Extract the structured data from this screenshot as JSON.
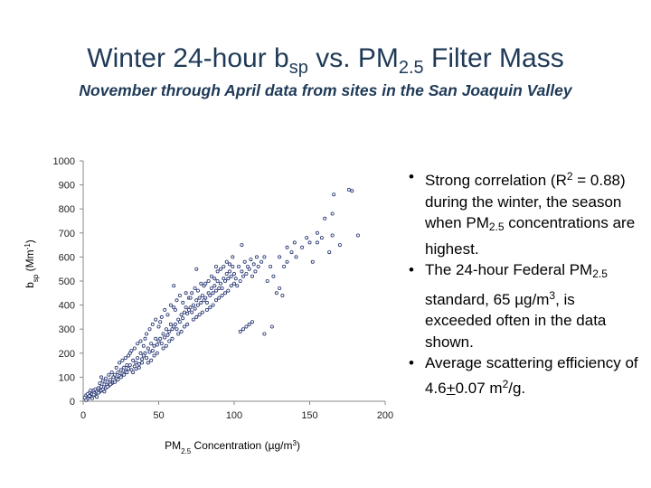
{
  "title": {
    "main": "Winter 24-hour b",
    "main_sub": "sp",
    "main_mid": " vs. PM",
    "main_sub2": "2.5",
    "main_end": " Filter Mass"
  },
  "subtitle": "November through April data from sites in the San Joaquin Valley",
  "bullets": [
    {
      "parts": [
        "Strong correlation (R",
        "2",
        " = 0.88) during the winter, the season when PM",
        "2.5",
        " concentrations are highest."
      ]
    },
    {
      "parts": [
        "The 24-hour Federal PM",
        "2.5",
        " standard, 65 µg/m",
        "3",
        ", is exceeded often in the data shown."
      ]
    },
    {
      "parts": [
        "Average scattering efficiency of 4.6",
        "+",
        "0.07 m",
        "2",
        "/g."
      ]
    }
  ],
  "chart_data": {
    "type": "scatter",
    "xlabel_parts": [
      "PM",
      "2.5",
      " Concentration (µg/m",
      "3",
      ")"
    ],
    "ylabel_parts": [
      "b",
      "sp",
      " (Mm",
      "-1",
      ")"
    ],
    "xlim": [
      0,
      200
    ],
    "ylim": [
      0,
      1000
    ],
    "xticks": [
      0,
      50,
      100,
      150,
      200
    ],
    "yticks": [
      0,
      100,
      200,
      300,
      400,
      500,
      600,
      700,
      800,
      900,
      1000
    ],
    "grid": false,
    "marker_color": "#1f2f6e",
    "series": [
      {
        "points": [
          [
            1,
            15
          ],
          [
            2,
            25
          ],
          [
            3,
            10
          ],
          [
            4,
            35
          ],
          [
            5,
            20
          ],
          [
            6,
            30
          ],
          [
            7,
            45
          ],
          [
            8,
            25
          ],
          [
            9,
            40
          ],
          [
            10,
            55
          ],
          [
            3,
            30
          ],
          [
            5,
            45
          ],
          [
            7,
            28
          ],
          [
            8,
            50
          ],
          [
            6,
            12
          ],
          [
            4,
            22
          ],
          [
            9,
            18
          ],
          [
            11,
            40
          ],
          [
            2,
            5
          ],
          [
            12,
            45
          ],
          [
            10,
            35
          ],
          [
            12,
            60
          ],
          [
            13,
            50
          ],
          [
            14,
            70
          ],
          [
            15,
            55
          ],
          [
            16,
            80
          ],
          [
            17,
            65
          ],
          [
            18,
            90
          ],
          [
            19,
            75
          ],
          [
            20,
            100
          ],
          [
            11,
            75
          ],
          [
            13,
            85
          ],
          [
            15,
            95
          ],
          [
            17,
            110
          ],
          [
            19,
            120
          ],
          [
            14,
            40
          ],
          [
            16,
            60
          ],
          [
            18,
            70
          ],
          [
            20,
            80
          ],
          [
            12,
            100
          ],
          [
            21,
            110
          ],
          [
            22,
            95
          ],
          [
            23,
            120
          ],
          [
            24,
            105
          ],
          [
            25,
            130
          ],
          [
            26,
            115
          ],
          [
            27,
            140
          ],
          [
            28,
            125
          ],
          [
            29,
            150
          ],
          [
            30,
            135
          ],
          [
            21,
            80
          ],
          [
            23,
            90
          ],
          [
            25,
            100
          ],
          [
            27,
            110
          ],
          [
            29,
            120
          ],
          [
            22,
            140
          ],
          [
            24,
            160
          ],
          [
            26,
            170
          ],
          [
            28,
            180
          ],
          [
            30,
            190
          ],
          [
            31,
            150
          ],
          [
            32,
            130
          ],
          [
            33,
            170
          ],
          [
            34,
            145
          ],
          [
            35,
            160
          ],
          [
            36,
            180
          ],
          [
            37,
            155
          ],
          [
            38,
            200
          ],
          [
            39,
            175
          ],
          [
            40,
            190
          ],
          [
            32,
            210
          ],
          [
            34,
            220
          ],
          [
            36,
            240
          ],
          [
            38,
            250
          ],
          [
            40,
            230
          ],
          [
            33,
            120
          ],
          [
            35,
            135
          ],
          [
            37,
            140
          ],
          [
            39,
            160
          ],
          [
            31,
            200
          ],
          [
            41,
            200
          ],
          [
            42,
            180
          ],
          [
            43,
            220
          ],
          [
            44,
            205
          ],
          [
            45,
            240
          ],
          [
            46,
            210
          ],
          [
            47,
            230
          ],
          [
            48,
            260
          ],
          [
            49,
            235
          ],
          [
            50,
            250
          ],
          [
            42,
            280
          ],
          [
            44,
            300
          ],
          [
            46,
            320
          ],
          [
            48,
            340
          ],
          [
            50,
            310
          ],
          [
            43,
            160
          ],
          [
            45,
            170
          ],
          [
            47,
            190
          ],
          [
            49,
            200
          ],
          [
            41,
            260
          ],
          [
            51,
            260
          ],
          [
            52,
            240
          ],
          [
            53,
            280
          ],
          [
            54,
            265
          ],
          [
            55,
            300
          ],
          [
            56,
            275
          ],
          [
            57,
            290
          ],
          [
            58,
            320
          ],
          [
            59,
            300
          ],
          [
            60,
            310
          ],
          [
            52,
            350
          ],
          [
            54,
            380
          ],
          [
            56,
            360
          ],
          [
            58,
            400
          ],
          [
            60,
            390
          ],
          [
            53,
            220
          ],
          [
            55,
            230
          ],
          [
            57,
            250
          ],
          [
            59,
            260
          ],
          [
            51,
            330
          ],
          [
            61,
            320
          ],
          [
            62,
            300
          ],
          [
            63,
            340
          ],
          [
            64,
            330
          ],
          [
            65,
            360
          ],
          [
            66,
            345
          ],
          [
            67,
            370
          ],
          [
            68,
            390
          ],
          [
            69,
            365
          ],
          [
            70,
            380
          ],
          [
            62,
            420
          ],
          [
            64,
            440
          ],
          [
            66,
            410
          ],
          [
            68,
            450
          ],
          [
            70,
            430
          ],
          [
            63,
            280
          ],
          [
            65,
            290
          ],
          [
            67,
            310
          ],
          [
            69,
            320
          ],
          [
            61,
            380
          ],
          [
            71,
            390
          ],
          [
            72,
            370
          ],
          [
            73,
            400
          ],
          [
            74,
            385
          ],
          [
            75,
            420
          ],
          [
            76,
            400
          ],
          [
            77,
            430
          ],
          [
            78,
            410
          ],
          [
            79,
            440
          ],
          [
            80,
            420
          ],
          [
            72,
            450
          ],
          [
            74,
            470
          ],
          [
            76,
            460
          ],
          [
            78,
            490
          ],
          [
            80,
            480
          ],
          [
            73,
            340
          ],
          [
            75,
            350
          ],
          [
            77,
            360
          ],
          [
            79,
            370
          ],
          [
            71,
            430
          ],
          [
            81,
            430
          ],
          [
            82,
            410
          ],
          [
            83,
            450
          ],
          [
            84,
            440
          ],
          [
            85,
            470
          ],
          [
            86,
            450
          ],
          [
            87,
            480
          ],
          [
            88,
            460
          ],
          [
            89,
            500
          ],
          [
            90,
            470
          ],
          [
            82,
            380
          ],
          [
            84,
            390
          ],
          [
            86,
            400
          ],
          [
            88,
            420
          ],
          [
            90,
            430
          ],
          [
            83,
            500
          ],
          [
            85,
            520
          ],
          [
            87,
            510
          ],
          [
            89,
            540
          ],
          [
            81,
            490
          ],
          [
            91,
            490
          ],
          [
            92,
            470
          ],
          [
            93,
            510
          ],
          [
            94,
            500
          ],
          [
            95,
            530
          ],
          [
            96,
            510
          ],
          [
            97,
            540
          ],
          [
            98,
            520
          ],
          [
            99,
            560
          ],
          [
            100,
            530
          ],
          [
            92,
            440
          ],
          [
            94,
            450
          ],
          [
            96,
            460
          ],
          [
            98,
            480
          ],
          [
            100,
            490
          ],
          [
            93,
            560
          ],
          [
            95,
            580
          ],
          [
            97,
            570
          ],
          [
            99,
            600
          ],
          [
            91,
            550
          ],
          [
            101,
            510
          ],
          [
            103,
            560
          ],
          [
            105,
            540
          ],
          [
            107,
            580
          ],
          [
            109,
            560
          ],
          [
            111,
            590
          ],
          [
            113,
            570
          ],
          [
            115,
            600
          ],
          [
            102,
            480
          ],
          [
            104,
            500
          ],
          [
            106,
            520
          ],
          [
            108,
            530
          ],
          [
            110,
            550
          ],
          [
            112,
            520
          ],
          [
            114,
            540
          ],
          [
            116,
            560
          ],
          [
            118,
            580
          ],
          [
            120,
            600
          ],
          [
            104,
            290
          ],
          [
            106,
            300
          ],
          [
            108,
            310
          ],
          [
            110,
            320
          ],
          [
            112,
            330
          ],
          [
            120,
            280
          ],
          [
            125,
            310
          ],
          [
            128,
            450
          ],
          [
            130,
            470
          ],
          [
            132,
            440
          ],
          [
            124,
            560
          ],
          [
            126,
            520
          ],
          [
            122,
            500
          ],
          [
            130,
            600
          ],
          [
            135,
            640
          ],
          [
            138,
            620
          ],
          [
            140,
            660
          ],
          [
            135,
            580
          ],
          [
            133,
            560
          ],
          [
            141,
            600
          ],
          [
            105,
            650
          ],
          [
            75,
            550
          ],
          [
            60,
            480
          ],
          [
            88,
            560
          ],
          [
            145,
            640
          ],
          [
            148,
            680
          ],
          [
            150,
            660
          ],
          [
            155,
            700
          ],
          [
            158,
            680
          ],
          [
            165,
            690
          ],
          [
            170,
            650
          ],
          [
            163,
            620
          ],
          [
            152,
            580
          ],
          [
            160,
            760
          ],
          [
            165,
            780
          ],
          [
            166,
            860
          ],
          [
            176,
            880
          ],
          [
            178,
            875
          ],
          [
            182,
            690
          ],
          [
            155,
            660
          ]
        ]
      }
    ]
  }
}
